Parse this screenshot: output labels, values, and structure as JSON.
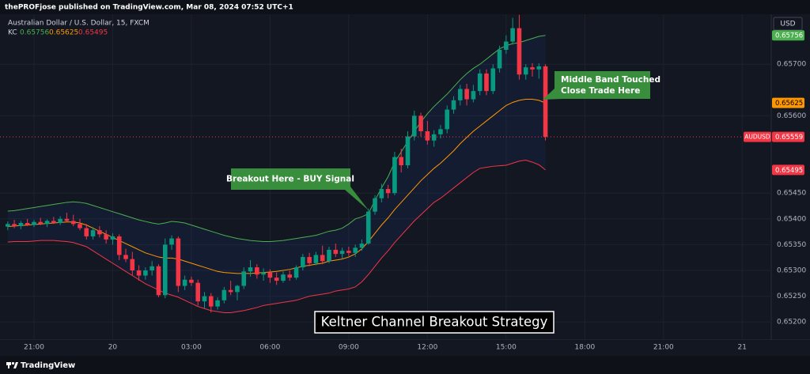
{
  "header": {
    "publisher_line": "thePROFjose published on TradingView.com, Mar 08, 2024 07:52 UTC+1",
    "brand": "TradingView"
  },
  "chart_data": {
    "type": "candlestick",
    "title": "Australian Dollar / U.S. Dollar, 15, FXCM",
    "symbol": "AUDUSD",
    "currency": "USD",
    "caption": "Keltner Channel Breakout Strategy",
    "annotations": [
      {
        "lines": [
          "Breakout Here - BUY Signal"
        ]
      },
      {
        "lines": [
          "Middle Band Touched",
          "Close Trade Here"
        ]
      }
    ],
    "up_color": "#089981",
    "down_color": "#f23645",
    "grid": true,
    "categories": [
      null,
      null,
      null,
      null,
      "21:00",
      null,
      null,
      null,
      null,
      null,
      null,
      null,
      null,
      null,
      null,
      null,
      "20",
      null,
      null,
      null,
      null,
      null,
      null,
      null,
      null,
      null,
      null,
      null,
      "03:00",
      null,
      null,
      null,
      null,
      null,
      null,
      null,
      null,
      null,
      null,
      null,
      "06:00",
      null,
      null,
      null,
      null,
      null,
      null,
      null,
      null,
      null,
      null,
      null,
      "09:00",
      null,
      null,
      null,
      null,
      null,
      null,
      null,
      null,
      null,
      null,
      null,
      "12:00",
      null,
      null,
      null,
      null,
      null,
      null,
      null,
      null,
      null,
      null,
      null,
      "15:00",
      null,
      null,
      null,
      null,
      null,
      null,
      null,
      null,
      null,
      null,
      null,
      "18:00",
      null,
      null,
      null,
      null,
      null,
      null,
      null,
      null,
      null,
      null,
      null,
      "21:00",
      null,
      null,
      null,
      null,
      null,
      null,
      null,
      null,
      null,
      null,
      null,
      "21",
      null,
      null,
      null,
      null
    ],
    "open": [
      0.65385,
      0.6539,
      0.65386,
      0.65392,
      0.65388,
      0.65394,
      0.6539,
      0.65396,
      0.65392,
      0.654,
      0.65396,
      0.6539,
      0.65382,
      0.65366,
      0.65378,
      0.6537,
      0.6536,
      0.65366,
      0.6533,
      0.65322,
      0.653,
      0.6529,
      0.653,
      0.65308,
      0.65252,
      0.6535,
      0.65362,
      0.6527,
      0.65282,
      0.65276,
      0.6524,
      0.6525,
      0.6523,
      0.65242,
      0.65262,
      0.65258,
      0.6527,
      0.65298,
      0.65306,
      0.65292,
      0.65296,
      0.65286,
      0.6528,
      0.65292,
      0.65286,
      0.65306,
      0.65326,
      0.65314,
      0.6533,
      0.65318,
      0.6534,
      0.65332,
      0.65338,
      0.65334,
      0.65344,
      0.65352,
      0.65414,
      0.6544,
      0.65458,
      0.6545,
      0.6552,
      0.65504,
      0.6556,
      0.656,
      0.6557,
      0.65552,
      0.65564,
      0.65574,
      0.65612,
      0.6563,
      0.65652,
      0.65632,
      0.65648,
      0.65682,
      0.65648,
      0.65692,
      0.65728,
      0.65744,
      0.6577,
      0.6568,
      0.65694,
      0.6569,
      0.65696,
      null,
      null,
      null,
      null,
      null,
      null,
      null,
      null,
      null,
      null,
      null,
      null,
      null,
      null,
      null,
      null,
      null,
      null,
      null,
      null,
      null,
      null,
      null,
      null,
      null,
      null,
      null,
      null,
      null,
      null,
      null,
      null,
      null,
      null
    ],
    "high": [
      0.65395,
      0.65398,
      0.65396,
      0.654,
      0.65398,
      0.65402,
      0.65399,
      0.65404,
      0.65405,
      0.65412,
      0.65408,
      0.654,
      0.6539,
      0.65384,
      0.65386,
      0.65378,
      0.65372,
      0.6537,
      0.65342,
      0.65336,
      0.6531,
      0.65306,
      0.65318,
      0.65312,
      0.65362,
      0.65368,
      0.65366,
      0.6529,
      0.65288,
      0.65282,
      0.65258,
      0.65256,
      0.65248,
      0.65268,
      0.6528,
      0.65272,
      0.65306,
      0.6532,
      0.65312,
      0.65304,
      0.65302,
      0.65296,
      0.65298,
      0.653,
      0.6531,
      0.65332,
      0.65334,
      0.65336,
      0.65348,
      0.65346,
      0.65352,
      0.65344,
      0.65346,
      0.6535,
      0.6536,
      0.6542,
      0.65446,
      0.65468,
      0.65466,
      0.6553,
      0.65536,
      0.6557,
      0.6561,
      0.65606,
      0.6559,
      0.65572,
      0.65582,
      0.6562,
      0.65638,
      0.6566,
      0.65662,
      0.6566,
      0.6569,
      0.6569,
      0.657,
      0.65736,
      0.65756,
      0.6579,
      0.65796,
      0.657,
      0.65702,
      0.65702,
      0.657,
      null,
      null,
      null,
      null,
      null,
      null,
      null,
      null,
      null,
      null,
      null,
      null,
      null,
      null,
      null,
      null,
      null,
      null,
      null,
      null,
      null,
      null,
      null,
      null,
      null,
      null,
      null,
      null,
      null,
      null,
      null,
      null,
      null,
      null
    ],
    "low": [
      0.65378,
      0.65382,
      0.6538,
      0.65386,
      0.65384,
      0.65388,
      0.65384,
      0.6539,
      0.65388,
      0.65394,
      0.65386,
      0.65378,
      0.6536,
      0.6536,
      0.65364,
      0.65352,
      0.6535,
      0.6532,
      0.65316,
      0.6529,
      0.6528,
      0.65282,
      0.6529,
      0.65248,
      0.65246,
      0.6534,
      0.65258,
      0.65262,
      0.6527,
      0.65232,
      0.65226,
      0.65218,
      0.65224,
      0.65236,
      0.65252,
      0.65242,
      0.65264,
      0.65288,
      0.65284,
      0.6528,
      0.65276,
      0.65272,
      0.65276,
      0.6528,
      0.65282,
      0.653,
      0.65308,
      0.6531,
      0.65312,
      0.65314,
      0.65326,
      0.65322,
      0.65328,
      0.65326,
      0.65338,
      0.6535,
      0.65408,
      0.65432,
      0.6544,
      0.65446,
      0.6549,
      0.65498,
      0.65552,
      0.6556,
      0.65544,
      0.6554,
      0.65556,
      0.65566,
      0.65604,
      0.6562,
      0.6562,
      0.65626,
      0.6564,
      0.6564,
      0.65642,
      0.65684,
      0.6572,
      0.65738,
      0.6567,
      0.6567,
      0.65676,
      0.65672,
      0.65552,
      null,
      null,
      null,
      null,
      null,
      null,
      null,
      null,
      null,
      null,
      null,
      null,
      null,
      null,
      null,
      null,
      null,
      null,
      null,
      null,
      null,
      null,
      null,
      null,
      null,
      null,
      null,
      null,
      null,
      null,
      null,
      null,
      null,
      null
    ],
    "close": [
      0.6539,
      0.65386,
      0.65392,
      0.65388,
      0.65394,
      0.6539,
      0.65396,
      0.65392,
      0.654,
      0.65396,
      0.6539,
      0.65382,
      0.65366,
      0.65378,
      0.6537,
      0.6536,
      0.65366,
      0.6533,
      0.65322,
      0.653,
      0.6529,
      0.653,
      0.65308,
      0.65252,
      0.6535,
      0.65362,
      0.6527,
      0.65282,
      0.65276,
      0.6524,
      0.6525,
      0.6523,
      0.65242,
      0.65262,
      0.65258,
      0.6527,
      0.65298,
      0.65306,
      0.65292,
      0.65296,
      0.65286,
      0.6528,
      0.65292,
      0.65286,
      0.65306,
      0.65326,
      0.65314,
      0.6533,
      0.65318,
      0.6534,
      0.65332,
      0.65338,
      0.65334,
      0.65344,
      0.65352,
      0.65414,
      0.6544,
      0.65458,
      0.6545,
      0.6552,
      0.65504,
      0.6556,
      0.656,
      0.6557,
      0.65552,
      0.65564,
      0.65574,
      0.65612,
      0.6563,
      0.65652,
      0.65632,
      0.65648,
      0.65682,
      0.65648,
      0.65692,
      0.65728,
      0.65744,
      0.6577,
      0.6568,
      0.65694,
      0.6569,
      0.65696,
      0.65559,
      null,
      null,
      null,
      null,
      null,
      null,
      null,
      null,
      null,
      null,
      null,
      null,
      null,
      null,
      null,
      null,
      null,
      null,
      null,
      null,
      null,
      null,
      null,
      null,
      null,
      null,
      null,
      null,
      null,
      null,
      null,
      null,
      null,
      null
    ],
    "indicator": {
      "name": "KC",
      "series": [
        {
          "color": "#4caf50",
          "values": [
            0.65415,
            0.65416,
            0.65418,
            0.6542,
            0.65422,
            0.65424,
            0.65426,
            0.65428,
            0.6543,
            0.65432,
            0.65433,
            0.65432,
            0.6543,
            0.65426,
            0.65422,
            0.65418,
            0.65414,
            0.6541,
            0.65406,
            0.65402,
            0.65398,
            0.65395,
            0.65392,
            0.6539,
            0.65392,
            0.65395,
            0.65394,
            0.65392,
            0.65388,
            0.65384,
            0.6538,
            0.65376,
            0.65372,
            0.65368,
            0.65365,
            0.65362,
            0.6536,
            0.65358,
            0.65357,
            0.65356,
            0.65356,
            0.65357,
            0.65358,
            0.6536,
            0.65362,
            0.65364,
            0.65366,
            0.65368,
            0.65372,
            0.65376,
            0.65378,
            0.65382,
            0.6539,
            0.654,
            0.65404,
            0.6541,
            0.65436,
            0.6546,
            0.65482,
            0.6551,
            0.6553,
            0.6555,
            0.6557,
            0.65588,
            0.65604,
            0.65618,
            0.6563,
            0.65642,
            0.65656,
            0.6567,
            0.65682,
            0.65692,
            0.657,
            0.6571,
            0.6572,
            0.6573,
            0.65736,
            0.6574,
            0.65742,
            0.65746,
            0.6575,
            0.65754,
            0.65756,
            null,
            null,
            null,
            null,
            null,
            null,
            null,
            null,
            null,
            null,
            null,
            null,
            null,
            null,
            null,
            null,
            null,
            null,
            null,
            null,
            null,
            null,
            null,
            null,
            null,
            null,
            null,
            null,
            null,
            null,
            null,
            null,
            null,
            null
          ]
        },
        {
          "color": "#ff9800",
          "values": [
            0.65385,
            0.65386,
            0.65387,
            0.65388,
            0.65389,
            0.6539,
            0.65391,
            0.65392,
            0.65393,
            0.65394,
            0.65394,
            0.65392,
            0.65388,
            0.65382,
            0.65376,
            0.6537,
            0.65364,
            0.65358,
            0.65352,
            0.65346,
            0.6534,
            0.65334,
            0.6533,
            0.65326,
            0.65324,
            0.65324,
            0.65322,
            0.65318,
            0.65314,
            0.6531,
            0.65306,
            0.65302,
            0.65298,
            0.65296,
            0.65295,
            0.65294,
            0.65294,
            0.65294,
            0.65295,
            0.65296,
            0.65297,
            0.65298,
            0.653,
            0.65302,
            0.65305,
            0.65308,
            0.6531,
            0.65312,
            0.65314,
            0.65318,
            0.6532,
            0.65322,
            0.65326,
            0.65332,
            0.65342,
            0.65356,
            0.65372,
            0.65388,
            0.65402,
            0.65418,
            0.65432,
            0.65446,
            0.6546,
            0.65474,
            0.65486,
            0.65498,
            0.65508,
            0.6552,
            0.65532,
            0.65546,
            0.65558,
            0.6557,
            0.6558,
            0.6559,
            0.656,
            0.6561,
            0.6562,
            0.65626,
            0.6563,
            0.65632,
            0.65632,
            0.6563,
            0.65625,
            null,
            null,
            null,
            null,
            null,
            null,
            null,
            null,
            null,
            null,
            null,
            null,
            null,
            null,
            null,
            null,
            null,
            null,
            null,
            null,
            null,
            null,
            null,
            null,
            null,
            null,
            null,
            null,
            null,
            null,
            null,
            null,
            null,
            null
          ]
        },
        {
          "color": "#f23645",
          "values": [
            0.65355,
            0.65356,
            0.65356,
            0.65356,
            0.65357,
            0.65358,
            0.65358,
            0.65358,
            0.65357,
            0.65356,
            0.65354,
            0.6535,
            0.65346,
            0.65338,
            0.6533,
            0.65322,
            0.65314,
            0.65306,
            0.65298,
            0.6529,
            0.65282,
            0.65274,
            0.65268,
            0.65262,
            0.65256,
            0.65252,
            0.65248,
            0.65242,
            0.65236,
            0.6523,
            0.65226,
            0.65222,
            0.6522,
            0.65218,
            0.65218,
            0.6522,
            0.65222,
            0.65225,
            0.65228,
            0.65232,
            0.65234,
            0.65236,
            0.65238,
            0.6524,
            0.65242,
            0.65246,
            0.6525,
            0.65252,
            0.65254,
            0.65256,
            0.6526,
            0.65262,
            0.65264,
            0.65268,
            0.65278,
            0.65292,
            0.65308,
            0.65324,
            0.65338,
            0.65354,
            0.65368,
            0.65382,
            0.65396,
            0.65408,
            0.6542,
            0.65432,
            0.6544,
            0.6545,
            0.6546,
            0.6547,
            0.6548,
            0.6549,
            0.65498,
            0.655,
            0.65502,
            0.65503,
            0.65504,
            0.65508,
            0.65512,
            0.65514,
            0.6551,
            0.65505,
            0.65495,
            null,
            null,
            null,
            null,
            null,
            null,
            null,
            null,
            null,
            null,
            null,
            null,
            null,
            null,
            null,
            null,
            null,
            null,
            null,
            null,
            null,
            null,
            null,
            null,
            null,
            null,
            null,
            null,
            null,
            null,
            null,
            null,
            null,
            null
          ]
        }
      ]
    },
    "ylim": [
      0.65165,
      0.65797
    ],
    "yticks": [
      {
        "value": 0.652,
        "label": "0.65200"
      },
      {
        "value": 0.6525,
        "label": "0.65250"
      },
      {
        "value": 0.653,
        "label": "0.65300"
      },
      {
        "value": 0.6535,
        "label": "0.65350"
      },
      {
        "value": 0.654,
        "label": "0.65400"
      },
      {
        "value": 0.6545,
        "label": "0.65450"
      },
      {
        "value": 0.656,
        "label": "0.65600"
      },
      {
        "value": 0.657,
        "label": "0.65700"
      }
    ]
  }
}
